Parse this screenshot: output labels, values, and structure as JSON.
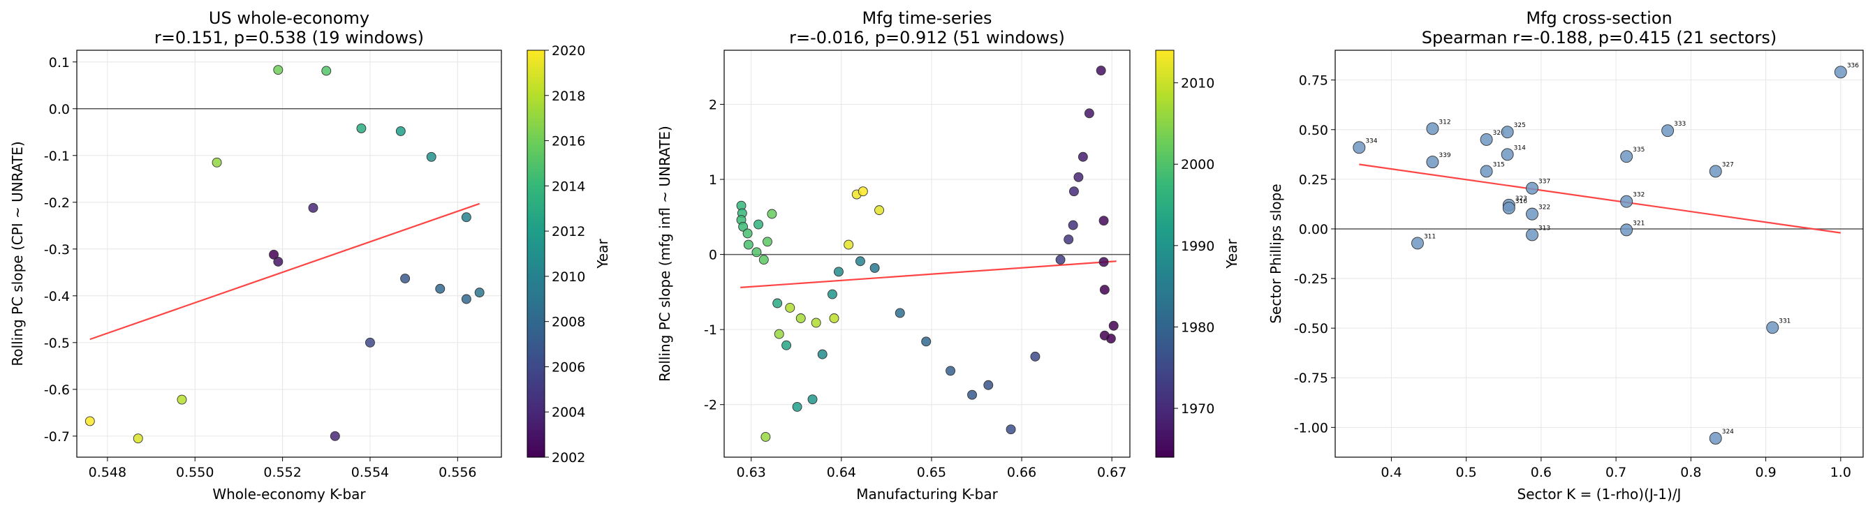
{
  "chart_data": [
    {
      "type": "scatter",
      "title": "US whole-economy",
      "subtitle": "r=0.151, p=0.538 (19 windows)",
      "xlabel": "Whole-economy K-bar",
      "ylabel": "Rolling PC slope (CPI ~ UNRATE)",
      "xlim": [
        0.5473,
        0.557
      ],
      "ylim": [
        -0.745,
        0.125
      ],
      "xticks": [
        "0.548",
        "0.550",
        "0.552",
        "0.554",
        "0.556"
      ],
      "yticks": [
        "0.1",
        "0.0",
        "-0.1",
        "-0.2",
        "-0.3",
        "-0.4",
        "-0.5",
        "-0.6",
        "-0.7"
      ],
      "grid": true,
      "reference_line_y": 0,
      "fit_line": {
        "x": [
          0.5476,
          0.5565
        ],
        "y": [
          -0.493,
          -0.203
        ],
        "color": "#ff4444"
      },
      "colormap": "viridis",
      "colorbar": {
        "label": "Year",
        "range": [
          2002,
          2020
        ],
        "ticks": [
          "2002",
          "2004",
          "2006",
          "2008",
          "2010",
          "2012",
          "2014",
          "2016",
          "2018",
          "2020"
        ]
      },
      "points": [
        {
          "x": 0.5476,
          "y": -0.668,
          "c": 2020
        },
        {
          "x": 0.5487,
          "y": -0.705,
          "c": 2019
        },
        {
          "x": 0.5497,
          "y": -0.622,
          "c": 2018
        },
        {
          "x": 0.5505,
          "y": -0.115,
          "c": 2017
        },
        {
          "x": 0.5519,
          "y": 0.083,
          "c": 2016
        },
        {
          "x": 0.553,
          "y": 0.081,
          "c": 2015
        },
        {
          "x": 0.5538,
          "y": -0.042,
          "c": 2013
        },
        {
          "x": 0.5547,
          "y": -0.048,
          "c": 2012
        },
        {
          "x": 0.5554,
          "y": -0.103,
          "c": 2011
        },
        {
          "x": 0.5562,
          "y": -0.232,
          "c": 2010
        },
        {
          "x": 0.5565,
          "y": -0.393,
          "c": 2009
        },
        {
          "x": 0.5562,
          "y": -0.407,
          "c": 2008
        },
        {
          "x": 0.5556,
          "y": -0.385,
          "c": 2008
        },
        {
          "x": 0.5548,
          "y": -0.363,
          "c": 2007
        },
        {
          "x": 0.554,
          "y": -0.5,
          "c": 2006
        },
        {
          "x": 0.5532,
          "y": -0.7,
          "c": 2004
        },
        {
          "x": 0.5527,
          "y": -0.212,
          "c": 2004
        },
        {
          "x": 0.5519,
          "y": -0.327,
          "c": 2003
        },
        {
          "x": 0.5518,
          "y": -0.312,
          "c": 2002
        }
      ]
    },
    {
      "type": "scatter",
      "title": "Mfg time-series",
      "subtitle": "r=-0.016, p=0.912 (51 windows)",
      "xlabel": "Manufacturing K-bar",
      "ylabel": "Rolling PC slope (mfg infl ~ UNRATE)",
      "xlim": [
        0.627,
        0.672
      ],
      "ylim": [
        -2.7,
        2.72
      ],
      "xticks": [
        "0.63",
        "0.64",
        "0.65",
        "0.66",
        "0.67"
      ],
      "yticks": [
        "2",
        "1",
        "0",
        "-1",
        "-2"
      ],
      "grid": true,
      "reference_line_y": 0,
      "fit_line": {
        "x": [
          0.6288,
          0.6705
        ],
        "y": [
          -0.44,
          -0.09
        ],
        "color": "#ff4444"
      },
      "colormap": "viridis",
      "colorbar": {
        "label": "Year",
        "range": [
          1964,
          2014
        ],
        "ticks": [
          "1970",
          "1980",
          "1990",
          "2000",
          "2010"
        ]
      },
      "points": [
        {
          "x": 0.6688,
          "y": 2.45,
          "c": 1966
        },
        {
          "x": 0.6675,
          "y": 1.88,
          "c": 1967
        },
        {
          "x": 0.6668,
          "y": 1.3,
          "c": 1968
        },
        {
          "x": 0.6663,
          "y": 1.03,
          "c": 1969
        },
        {
          "x": 0.6658,
          "y": 0.84,
          "c": 1970
        },
        {
          "x": 0.6691,
          "y": 0.45,
          "c": 1965
        },
        {
          "x": 0.6657,
          "y": 0.39,
          "c": 1971
        },
        {
          "x": 0.6652,
          "y": 0.2,
          "c": 1972
        },
        {
          "x": 0.6643,
          "y": -0.07,
          "c": 1973
        },
        {
          "x": 0.6691,
          "y": -0.1,
          "c": 1965
        },
        {
          "x": 0.6692,
          "y": -0.47,
          "c": 1964
        },
        {
          "x": 0.6702,
          "y": -0.95,
          "c": 1964
        },
        {
          "x": 0.6692,
          "y": -1.08,
          "c": 1964
        },
        {
          "x": 0.6699,
          "y": -1.12,
          "c": 1964
        },
        {
          "x": 0.6615,
          "y": -1.36,
          "c": 1975
        },
        {
          "x": 0.6588,
          "y": -2.33,
          "c": 1976
        },
        {
          "x": 0.6563,
          "y": -1.74,
          "c": 1977
        },
        {
          "x": 0.6545,
          "y": -1.87,
          "c": 1978
        },
        {
          "x": 0.6521,
          "y": -1.55,
          "c": 1979
        },
        {
          "x": 0.6494,
          "y": -1.16,
          "c": 1981
        },
        {
          "x": 0.6465,
          "y": -0.78,
          "c": 1982
        },
        {
          "x": 0.6437,
          "y": -0.18,
          "c": 1984
        },
        {
          "x": 0.6421,
          "y": -0.09,
          "c": 1986
        },
        {
          "x": 0.6397,
          "y": -0.23,
          "c": 1988
        },
        {
          "x": 0.639,
          "y": -0.53,
          "c": 1990
        },
        {
          "x": 0.6379,
          "y": -1.33,
          "c": 1988
        },
        {
          "x": 0.6368,
          "y": -1.93,
          "c": 1990
        },
        {
          "x": 0.6351,
          "y": -2.03,
          "c": 1992
        },
        {
          "x": 0.6339,
          "y": -1.21,
          "c": 1993
        },
        {
          "x": 0.6329,
          "y": -0.65,
          "c": 1994
        },
        {
          "x": 0.6331,
          "y": -1.06,
          "c": 2006
        },
        {
          "x": 0.6316,
          "y": -2.43,
          "c": 2006
        },
        {
          "x": 0.6343,
          "y": -0.71,
          "c": 2008
        },
        {
          "x": 0.6355,
          "y": -0.85,
          "c": 2007
        },
        {
          "x": 0.6372,
          "y": -0.91,
          "c": 2008
        },
        {
          "x": 0.6392,
          "y": -0.85,
          "c": 2009
        },
        {
          "x": 0.6408,
          "y": 0.13,
          "c": 2012
        },
        {
          "x": 0.6417,
          "y": 0.8,
          "c": 2013
        },
        {
          "x": 0.6424,
          "y": 0.84,
          "c": 2014
        },
        {
          "x": 0.6442,
          "y": 0.59,
          "c": 2012
        },
        {
          "x": 0.6289,
          "y": 0.65,
          "c": 1997
        },
        {
          "x": 0.629,
          "y": 0.55,
          "c": 1997
        },
        {
          "x": 0.6289,
          "y": 0.46,
          "c": 1998
        },
        {
          "x": 0.6291,
          "y": 0.37,
          "c": 1998
        },
        {
          "x": 0.6296,
          "y": 0.28,
          "c": 1999
        },
        {
          "x": 0.6297,
          "y": 0.13,
          "c": 1999
        },
        {
          "x": 0.6306,
          "y": 0.03,
          "c": 2000
        },
        {
          "x": 0.6314,
          "y": -0.07,
          "c": 2001
        },
        {
          "x": 0.6308,
          "y": 0.4,
          "c": 1996
        },
        {
          "x": 0.6323,
          "y": 0.54,
          "c": 2002
        },
        {
          "x": 0.6318,
          "y": 0.17,
          "c": 2001
        }
      ]
    },
    {
      "type": "scatter",
      "title": "Mfg cross-section",
      "subtitle": "Spearman r=-0.188, p=0.415 (21 sectors)",
      "xlabel": "Sector K = (1-rho)(J-1)/J",
      "ylabel": "Sector Phillips slope",
      "xlim": [
        0.325,
        1.03
      ],
      "ylim": [
        -1.15,
        0.9
      ],
      "xticks": [
        "0.4",
        "0.5",
        "0.6",
        "0.7",
        "0.8",
        "0.9",
        "1.0"
      ],
      "yticks": [
        "0.75",
        "0.50",
        "0.25",
        "0.00",
        "-0.25",
        "-0.50",
        "-0.75",
        "-1.00"
      ],
      "grid": true,
      "reference_line_y": 0,
      "fit_line": {
        "x": [
          0.357,
          1.0
        ],
        "y": [
          0.325,
          -0.02
        ],
        "color": "#ff4444"
      },
      "point_color": "#6e96c2",
      "points": [
        {
          "x": 0.357,
          "y": 0.41,
          "label": "334"
        },
        {
          "x": 0.435,
          "y": -0.072,
          "label": "311"
        },
        {
          "x": 0.455,
          "y": 0.505,
          "label": "312"
        },
        {
          "x": 0.455,
          "y": 0.337,
          "label": "339"
        },
        {
          "x": 0.527,
          "y": 0.45,
          "label": "326"
        },
        {
          "x": 0.527,
          "y": 0.29,
          "label": "315"
        },
        {
          "x": 0.555,
          "y": 0.488,
          "label": "325"
        },
        {
          "x": 0.555,
          "y": 0.375,
          "label": "314"
        },
        {
          "x": 0.557,
          "y": 0.12,
          "label": "323"
        },
        {
          "x": 0.557,
          "y": 0.105,
          "label": "316"
        },
        {
          "x": 0.588,
          "y": 0.205,
          "label": "337"
        },
        {
          "x": 0.588,
          "y": 0.075,
          "label": "322"
        },
        {
          "x": 0.588,
          "y": -0.03,
          "label": "313"
        },
        {
          "x": 0.714,
          "y": 0.365,
          "label": "335"
        },
        {
          "x": 0.714,
          "y": 0.138,
          "label": "332"
        },
        {
          "x": 0.714,
          "y": -0.005,
          "label": "321"
        },
        {
          "x": 0.769,
          "y": 0.495,
          "label": "333"
        },
        {
          "x": 0.833,
          "y": 0.29,
          "label": "327"
        },
        {
          "x": 0.833,
          "y": -1.055,
          "label": "324"
        },
        {
          "x": 0.909,
          "y": -0.497,
          "label": "331"
        },
        {
          "x": 1.0,
          "y": 0.79,
          "label": "336"
        }
      ]
    }
  ]
}
